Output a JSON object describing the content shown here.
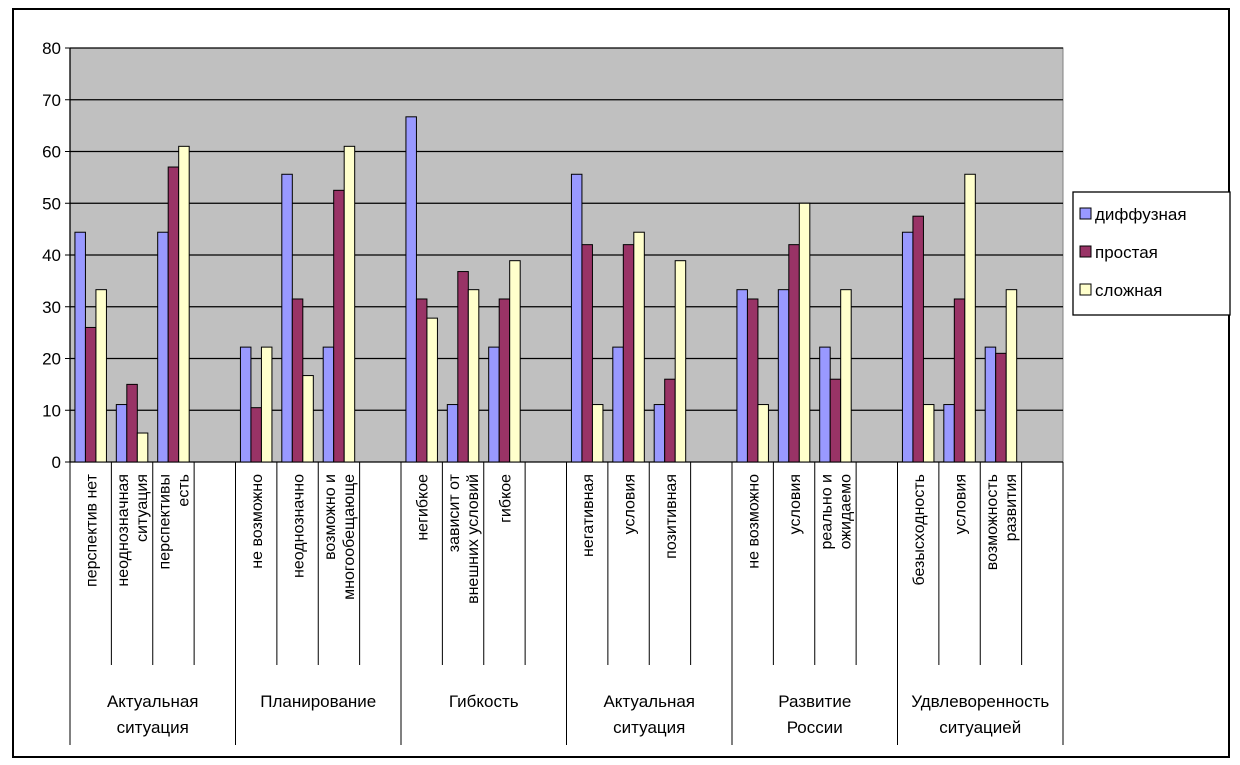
{
  "chart_data": {
    "type": "bar",
    "ylim": [
      0,
      80
    ],
    "yticks": [
      0,
      10,
      20,
      30,
      40,
      50,
      60,
      70,
      80
    ],
    "grid": true,
    "legend_position": "right",
    "groups": [
      {
        "label": "Актуальная ситуация",
        "categories": [
          "перспектив нет",
          "неоднозначная ситуация",
          "перспективы есть"
        ]
      },
      {
        "label": "Планирование",
        "categories": [
          "не возможно",
          "неоднозначно",
          "возможно и многообещающе"
        ]
      },
      {
        "label": "Гибкость",
        "categories": [
          "негибкое",
          "зависит от внешних условий",
          "гибкое"
        ]
      },
      {
        "label": "Актуальная ситуация",
        "categories": [
          "негативная",
          "условия",
          "позитивная"
        ]
      },
      {
        "label": "Развитие России",
        "categories": [
          "не возможно",
          "условия",
          "реально и ожидаемо"
        ]
      },
      {
        "label": "Удвлеворенность ситуацией",
        "categories": [
          "безысходность",
          "условия",
          "возможность развития"
        ]
      }
    ],
    "series": [
      {
        "name": "диффузная",
        "color": "#9999ff",
        "values": [
          44.4,
          11.1,
          44.4,
          22.2,
          55.6,
          22.2,
          66.7,
          11.1,
          22.2,
          55.6,
          22.2,
          11.1,
          33.3,
          33.3,
          22.2,
          44.4,
          11.1,
          22.2
        ]
      },
      {
        "name": "простая",
        "color": "#993366",
        "values": [
          26,
          15,
          57,
          10.5,
          31.5,
          52.5,
          31.5,
          36.8,
          31.5,
          42,
          42,
          16,
          31.5,
          42,
          16,
          47.5,
          31.5,
          21
        ]
      },
      {
        "name": "сложная",
        "color": "#ffffcc",
        "values": [
          33.3,
          5.6,
          61,
          22.2,
          16.7,
          61,
          27.8,
          33.3,
          38.9,
          11.1,
          44.4,
          38.9,
          11.1,
          50,
          33.3,
          11.1,
          55.6,
          33.3
        ]
      }
    ]
  }
}
